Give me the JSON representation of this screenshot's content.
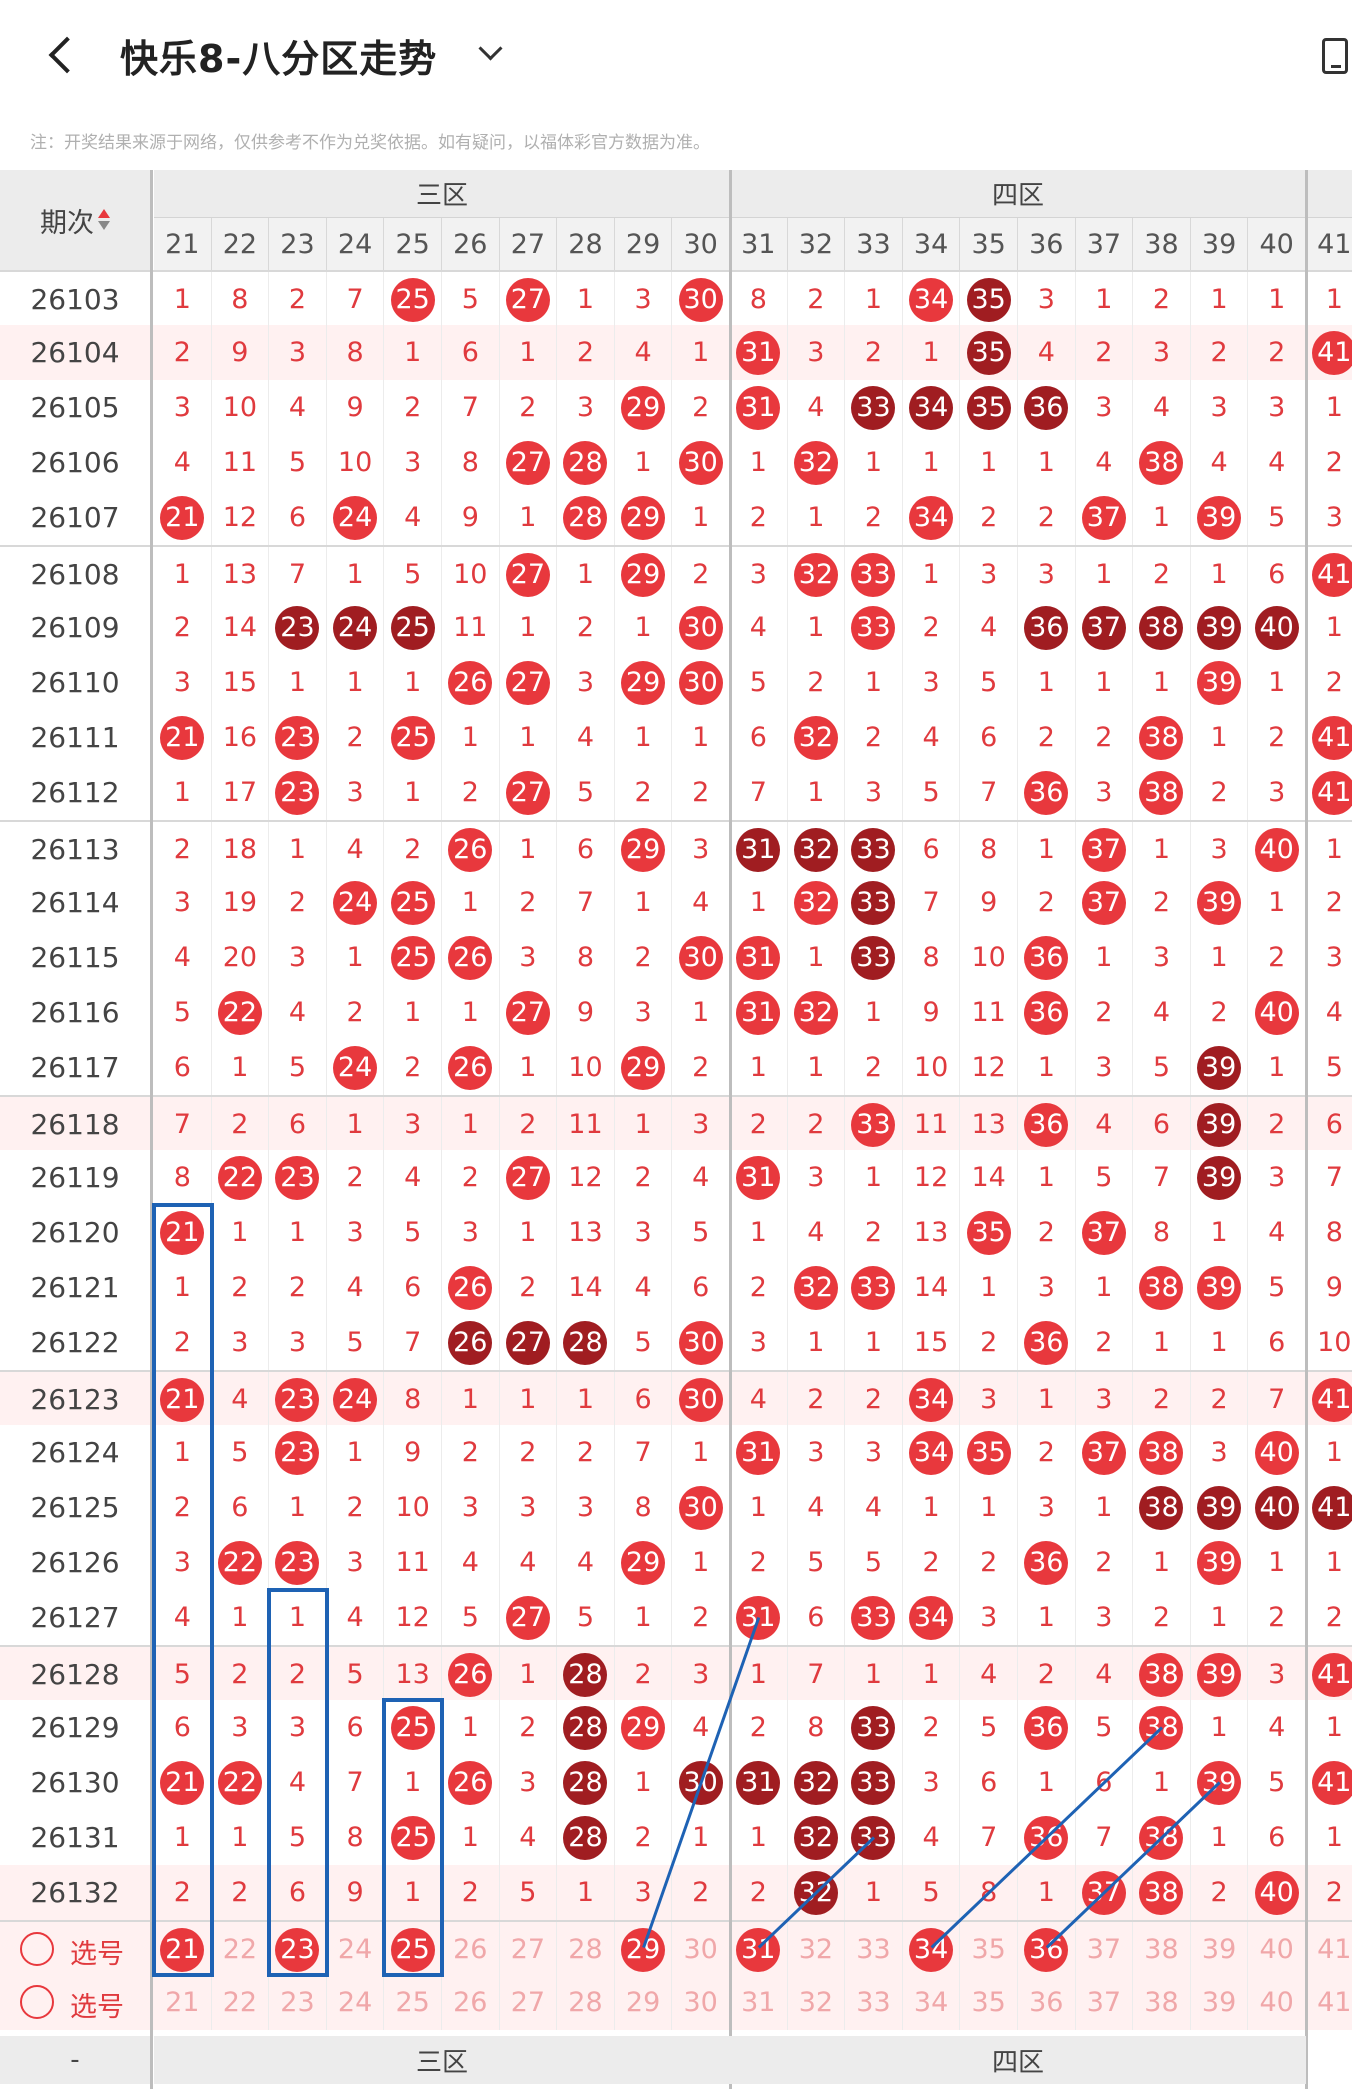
{
  "header": {
    "title": "快乐8-八分区走势",
    "note": "注：开奖结果来源于网络，仅供参考不作为兑奖依据。如有疑问，以福体彩官方数据为准。"
  },
  "table": {
    "period_label": "期次",
    "zones": [
      {
        "name": "三区",
        "numbers": [
          "21",
          "22",
          "23",
          "24",
          "25",
          "26",
          "27",
          "28",
          "29",
          "30"
        ]
      },
      {
        "name": "四区",
        "numbers": [
          "31",
          "32",
          "33",
          "34",
          "35",
          "36",
          "37",
          "38",
          "39",
          "40"
        ]
      }
    ],
    "extra_col": "41",
    "rows": [
      {
        "period": "26103",
        "cells": [
          "1",
          "8",
          "2",
          "7",
          "R25",
          "5",
          "R27",
          "1",
          "3",
          "R30",
          "8",
          "2",
          "1",
          "R34",
          "D35",
          "3",
          "1",
          "2",
          "1",
          "1",
          "1"
        ]
      },
      {
        "period": "26104",
        "cells": [
          "2",
          "9",
          "3",
          "8",
          "1",
          "6",
          "1",
          "2",
          "4",
          "1",
          "R31",
          "3",
          "2",
          "1",
          "D35",
          "4",
          "2",
          "3",
          "2",
          "2",
          "R41"
        ]
      },
      {
        "period": "26105",
        "cells": [
          "3",
          "10",
          "4",
          "9",
          "2",
          "7",
          "2",
          "3",
          "R29",
          "2",
          "R31",
          "4",
          "D33",
          "D34",
          "D35",
          "D36",
          "3",
          "4",
          "3",
          "3",
          "1"
        ]
      },
      {
        "period": "26106",
        "cells": [
          "4",
          "11",
          "5",
          "10",
          "3",
          "8",
          "R27",
          "R28",
          "1",
          "R30",
          "1",
          "R32",
          "1",
          "1",
          "1",
          "1",
          "4",
          "R38",
          "4",
          "4",
          "2"
        ]
      },
      {
        "period": "26107",
        "cells": [
          "R21",
          "12",
          "6",
          "R24",
          "4",
          "9",
          "1",
          "R28",
          "R29",
          "1",
          "2",
          "1",
          "2",
          "R34",
          "2",
          "2",
          "R37",
          "1",
          "R39",
          "5",
          "3"
        ]
      },
      {
        "period": "26108",
        "cells": [
          "1",
          "13",
          "7",
          "1",
          "5",
          "10",
          "R27",
          "1",
          "R29",
          "2",
          "3",
          "R32",
          "R33",
          "1",
          "3",
          "3",
          "1",
          "2",
          "1",
          "6",
          "R41"
        ]
      },
      {
        "period": "26109",
        "cells": [
          "2",
          "14",
          "D23",
          "D24",
          "D25",
          "11",
          "1",
          "2",
          "1",
          "R30",
          "4",
          "1",
          "R33",
          "2",
          "4",
          "D36",
          "D37",
          "D38",
          "D39",
          "D40",
          "1"
        ]
      },
      {
        "period": "26110",
        "cells": [
          "3",
          "15",
          "1",
          "1",
          "1",
          "R26",
          "R27",
          "3",
          "R29",
          "R30",
          "5",
          "2",
          "1",
          "3",
          "5",
          "1",
          "1",
          "1",
          "R39",
          "1",
          "2"
        ]
      },
      {
        "period": "26111",
        "cells": [
          "R21",
          "16",
          "R23",
          "2",
          "R25",
          "1",
          "1",
          "4",
          "1",
          "1",
          "6",
          "R32",
          "2",
          "4",
          "6",
          "2",
          "2",
          "R38",
          "1",
          "2",
          "R41"
        ]
      },
      {
        "period": "26112",
        "cells": [
          "1",
          "17",
          "R23",
          "3",
          "1",
          "2",
          "R27",
          "5",
          "2",
          "2",
          "7",
          "1",
          "3",
          "5",
          "7",
          "R36",
          "3",
          "R38",
          "2",
          "3",
          "R41"
        ]
      },
      {
        "period": "26113",
        "cells": [
          "2",
          "18",
          "1",
          "4",
          "2",
          "R26",
          "1",
          "6",
          "R29",
          "3",
          "D31",
          "D32",
          "D33",
          "6",
          "8",
          "1",
          "R37",
          "1",
          "3",
          "R40",
          "1"
        ]
      },
      {
        "period": "26114",
        "cells": [
          "3",
          "19",
          "2",
          "R24",
          "R25",
          "1",
          "2",
          "7",
          "1",
          "4",
          "1",
          "R32",
          "D33",
          "7",
          "9",
          "2",
          "R37",
          "2",
          "R39",
          "1",
          "2"
        ]
      },
      {
        "period": "26115",
        "cells": [
          "4",
          "20",
          "3",
          "1",
          "R25",
          "R26",
          "3",
          "8",
          "2",
          "R30",
          "R31",
          "1",
          "D33",
          "8",
          "10",
          "R36",
          "1",
          "3",
          "1",
          "2",
          "3"
        ]
      },
      {
        "period": "26116",
        "cells": [
          "5",
          "R22",
          "4",
          "2",
          "1",
          "1",
          "R27",
          "9",
          "3",
          "1",
          "R31",
          "R32",
          "1",
          "9",
          "11",
          "R36",
          "2",
          "4",
          "2",
          "R40",
          "4"
        ]
      },
      {
        "period": "26117",
        "cells": [
          "6",
          "1",
          "5",
          "R24",
          "2",
          "R26",
          "1",
          "10",
          "R29",
          "2",
          "1",
          "1",
          "2",
          "10",
          "12",
          "1",
          "3",
          "5",
          "D39",
          "1",
          "5"
        ]
      },
      {
        "period": "26118",
        "cells": [
          "7",
          "2",
          "6",
          "1",
          "3",
          "1",
          "2",
          "11",
          "1",
          "3",
          "2",
          "2",
          "R33",
          "11",
          "13",
          "R36",
          "4",
          "6",
          "D39",
          "2",
          "6"
        ]
      },
      {
        "period": "26119",
        "cells": [
          "8",
          "R22",
          "R23",
          "2",
          "4",
          "2",
          "R27",
          "12",
          "2",
          "4",
          "R31",
          "3",
          "1",
          "12",
          "14",
          "1",
          "5",
          "7",
          "D39",
          "3",
          "7"
        ]
      },
      {
        "period": "26120",
        "cells": [
          "R21",
          "1",
          "1",
          "3",
          "5",
          "3",
          "1",
          "13",
          "3",
          "5",
          "1",
          "4",
          "2",
          "13",
          "R35",
          "2",
          "R37",
          "8",
          "1",
          "4",
          "8"
        ]
      },
      {
        "period": "26121",
        "cells": [
          "1",
          "2",
          "2",
          "4",
          "6",
          "R26",
          "2",
          "14",
          "4",
          "6",
          "2",
          "R32",
          "R33",
          "14",
          "1",
          "3",
          "1",
          "R38",
          "R39",
          "5",
          "9"
        ]
      },
      {
        "period": "26122",
        "cells": [
          "2",
          "3",
          "3",
          "5",
          "7",
          "D26",
          "D27",
          "D28",
          "5",
          "R30",
          "3",
          "1",
          "1",
          "15",
          "2",
          "R36",
          "2",
          "1",
          "1",
          "6",
          "10"
        ]
      },
      {
        "period": "26123",
        "cells": [
          "R21",
          "4",
          "R23",
          "R24",
          "8",
          "1",
          "1",
          "1",
          "6",
          "R30",
          "4",
          "2",
          "2",
          "R34",
          "3",
          "1",
          "3",
          "2",
          "2",
          "7",
          "R41"
        ]
      },
      {
        "period": "26124",
        "cells": [
          "1",
          "5",
          "R23",
          "1",
          "9",
          "2",
          "2",
          "2",
          "7",
          "1",
          "R31",
          "3",
          "3",
          "R34",
          "R35",
          "2",
          "R37",
          "R38",
          "3",
          "R40",
          "1"
        ]
      },
      {
        "period": "26125",
        "cells": [
          "2",
          "6",
          "1",
          "2",
          "10",
          "3",
          "3",
          "3",
          "8",
          "R30",
          "1",
          "4",
          "4",
          "1",
          "1",
          "3",
          "1",
          "D38",
          "D39",
          "D40",
          "D41"
        ]
      },
      {
        "period": "26126",
        "cells": [
          "3",
          "R22",
          "R23",
          "3",
          "11",
          "4",
          "4",
          "4",
          "R29",
          "1",
          "2",
          "5",
          "5",
          "2",
          "2",
          "R36",
          "2",
          "1",
          "R39",
          "1",
          "1"
        ]
      },
      {
        "period": "26127",
        "cells": [
          "4",
          "1",
          "1",
          "4",
          "12",
          "5",
          "R27",
          "5",
          "1",
          "2",
          "R31",
          "6",
          "R33",
          "R34",
          "3",
          "1",
          "3",
          "2",
          "1",
          "2",
          "2"
        ]
      },
      {
        "period": "26128",
        "cells": [
          "5",
          "2",
          "2",
          "5",
          "13",
          "R26",
          "1",
          "D28",
          "2",
          "3",
          "1",
          "7",
          "1",
          "1",
          "4",
          "2",
          "4",
          "R38",
          "R39",
          "3",
          "R41"
        ]
      },
      {
        "period": "26129",
        "cells": [
          "6",
          "3",
          "3",
          "6",
          "R25",
          "1",
          "2",
          "D28",
          "R29",
          "4",
          "2",
          "8",
          "D33",
          "2",
          "5",
          "R36",
          "5",
          "R38",
          "1",
          "4",
          "1"
        ]
      },
      {
        "period": "26130",
        "cells": [
          "R21",
          "R22",
          "4",
          "7",
          "1",
          "R26",
          "3",
          "D28",
          "1",
          "D30",
          "D31",
          "D32",
          "D33",
          "3",
          "6",
          "1",
          "6",
          "1",
          "R39",
          "5",
          "R41"
        ]
      },
      {
        "period": "26131",
        "cells": [
          "1",
          "1",
          "5",
          "8",
          "R25",
          "1",
          "4",
          "D28",
          "2",
          "1",
          "1",
          "D32",
          "D33",
          "4",
          "7",
          "R36",
          "7",
          "R38",
          "1",
          "6",
          "1"
        ]
      },
      {
        "period": "26132",
        "cells": [
          "2",
          "2",
          "6",
          "9",
          "1",
          "2",
          "5",
          "1",
          "3",
          "2",
          "2",
          "D32",
          "1",
          "5",
          "8",
          "1",
          "R37",
          "R38",
          "2",
          "R40",
          "2"
        ]
      }
    ],
    "pick_rows": [
      {
        "label": "选号",
        "selected": [
          "21",
          "23",
          "25",
          "29",
          "31",
          "34",
          "36"
        ]
      },
      {
        "label": "选号",
        "selected": []
      }
    ]
  },
  "colors": {
    "red": "#e8383d",
    "dark_red": "#a01d21",
    "box_blue": "#1e62b4"
  }
}
